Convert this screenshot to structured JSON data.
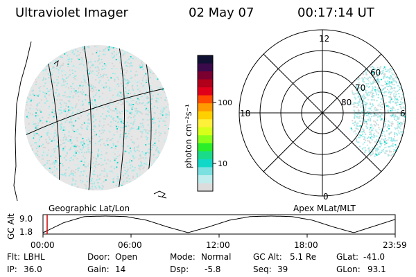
{
  "header": {
    "instrument": "Ultraviolet Imager",
    "date": "02 May 07",
    "time": "00:17:14 UT"
  },
  "colorbar": {
    "label": "photon cm⁻²s⁻¹",
    "ticks": [
      "100",
      "10"
    ],
    "colors": [
      "#111133",
      "#3a0a4a",
      "#7a0030",
      "#b0001a",
      "#e0001a",
      "#ff4a00",
      "#ff9a00",
      "#ffd000",
      "#fff03a",
      "#d8ff1a",
      "#8aff1a",
      "#2aee2a",
      "#1adb8a",
      "#10d8c8",
      "#7ae0e0",
      "#bfecec",
      "#dcdcdc"
    ]
  },
  "left_panel": {
    "caption": "Geographic Lat/Lon"
  },
  "right_panel": {
    "caption": "Apex MLat/MLT",
    "mlt_labels": [
      "12",
      "18",
      "6",
      "0"
    ],
    "mlat_labels": [
      "80",
      "70",
      "60"
    ]
  },
  "altitude_plot": {
    "ylabel": "GC Alt",
    "yticks": [
      "9.0",
      "1.8"
    ],
    "xticks": [
      "00:00",
      "06:00",
      "12:00",
      "18:00",
      "23:59"
    ],
    "marker_time": "00:17",
    "orbit_ratio": [
      0.0,
      0.6,
      0.97,
      1.0,
      0.97,
      0.75,
      0.35,
      0.0,
      0.35,
      0.75,
      0.97,
      1.0,
      0.97,
      0.75,
      0.35,
      0.0,
      0.4,
      0.8
    ],
    "marker_color": "#cc0000"
  },
  "status": {
    "filter": {
      "label": "Flt:",
      "value": "LBHL"
    },
    "ip": {
      "label": "IP:",
      "value": "36.0"
    },
    "door": {
      "label": "Door:",
      "value": "Open"
    },
    "gain": {
      "label": "Gain:",
      "value": "14"
    },
    "mode": {
      "label": "Mode:",
      "value": "Normal"
    },
    "dsp": {
      "label": "Dsp:",
      "value": "-5.8"
    },
    "gc_alt": {
      "label": "GC Alt:",
      "value": "5.1 Re"
    },
    "seq": {
      "label": "Seq:",
      "value": "39"
    },
    "glat": {
      "label": "GLat:",
      "value": "-41.0"
    },
    "glon": {
      "label": "GLon:",
      "value": "93.1"
    }
  },
  "colors": {
    "speckle_main": "#9ee8e8",
    "speckle_grey": "#d4d4d4",
    "speckle_strong": "#10d8c8",
    "speckle_light": "#c4eeee"
  }
}
